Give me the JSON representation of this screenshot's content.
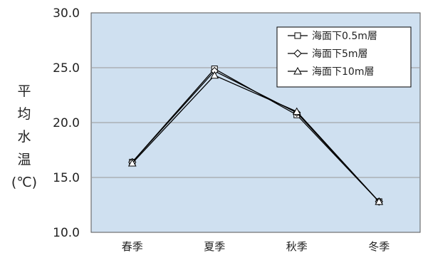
{
  "chart_data": {
    "type": "line",
    "categories": [
      "春季",
      "夏季",
      "秋季",
      "冬季"
    ],
    "series": [
      {
        "name": "海面下0.5m層",
        "marker": "square",
        "values": [
          16.4,
          24.9,
          20.7,
          12.8
        ]
      },
      {
        "name": "海面下5m層",
        "marker": "diamond",
        "values": [
          16.4,
          24.7,
          20.9,
          12.8
        ]
      },
      {
        "name": "海面下10m層",
        "marker": "triangle",
        "values": [
          16.3,
          24.3,
          21.0,
          12.8
        ]
      }
    ],
    "ylabel": [
      "平",
      "均",
      "水",
      "温",
      "(℃)"
    ],
    "yticks": [
      "10.0",
      "15.0",
      "20.0",
      "25.0",
      "30.0"
    ],
    "ylim": [
      10,
      30
    ],
    "grid": true,
    "legend_position": "top-right",
    "colors": {
      "plot_bg": "#cfe0f0",
      "grid": "#999999",
      "line": "#000000"
    }
  }
}
